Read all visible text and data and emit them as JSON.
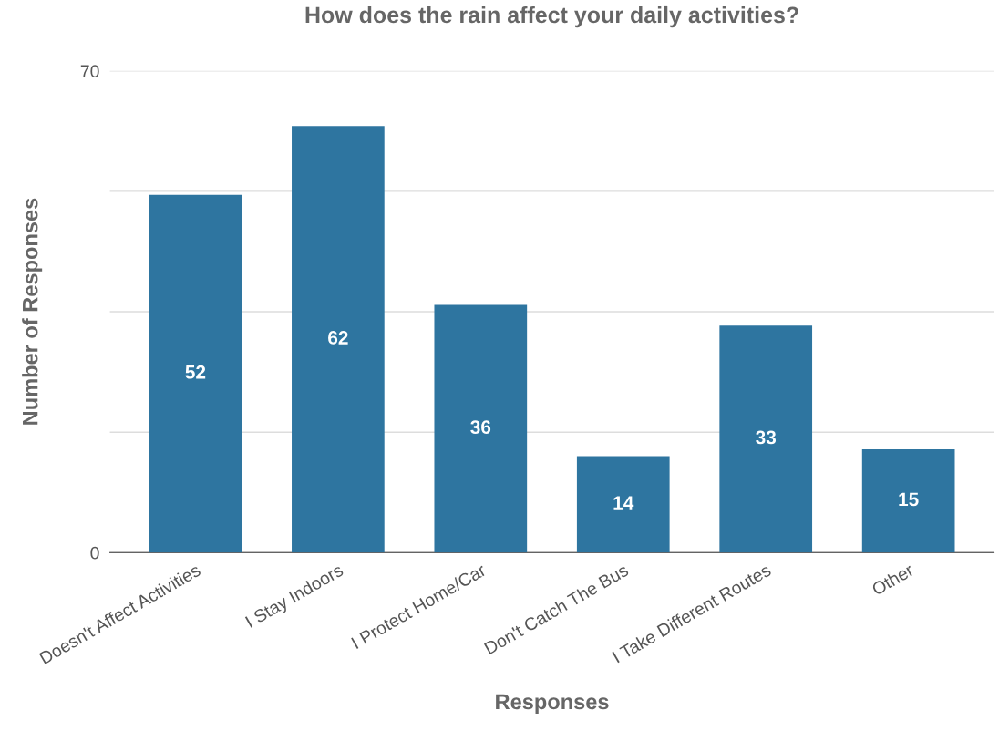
{
  "chart_data": {
    "type": "bar",
    "title": "How does the rain affect your daily activities?",
    "xlabel": "Responses",
    "ylabel": "Number of Responses",
    "categories": [
      "Doesn't Affect Activities",
      "I Stay Indoors",
      "I Protect Home/Car",
      "Don't Catch The Bus",
      "I Take Different Routes",
      "Other"
    ],
    "values": [
      52,
      62,
      36,
      14,
      33,
      15
    ],
    "color": "#2e75a0",
    "ylim": [
      0,
      70
    ],
    "yticks": [
      0,
      {
        "value": 17.5,
        "label": null
      },
      {
        "value": 35,
        "label": null
      },
      {
        "value": 52.5,
        "label": null
      },
      70
    ],
    "grid": "y",
    "data_labels": true
  }
}
